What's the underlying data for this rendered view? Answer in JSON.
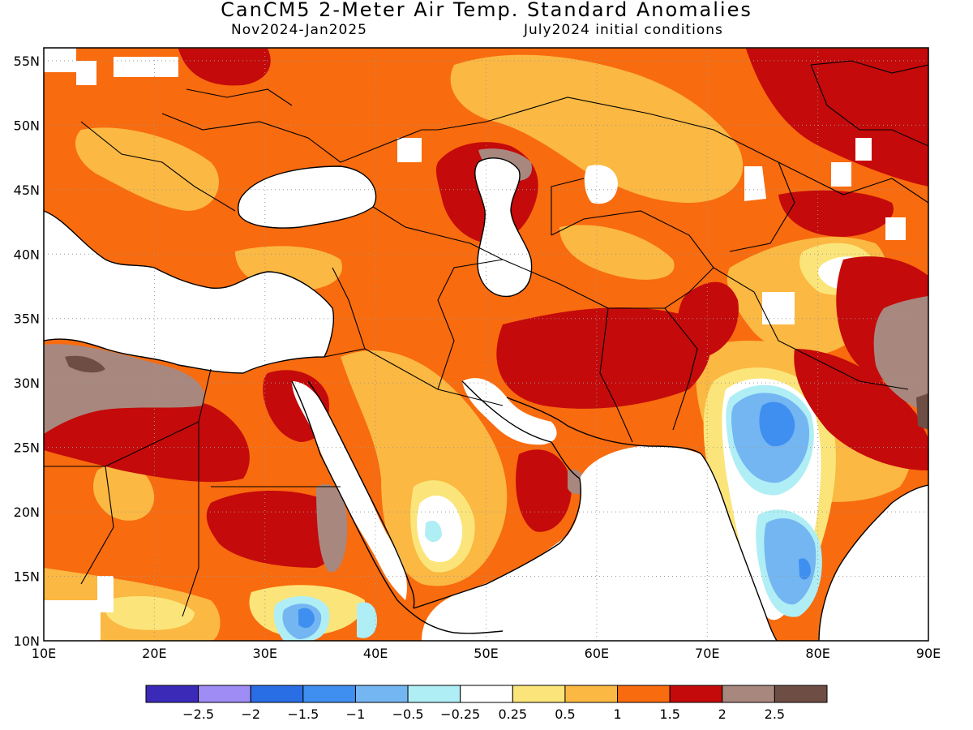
{
  "title": "CanCM5 2-Meter Air Temp. Standard Anomalies",
  "subtitle_period": "Nov2024-Jan2025",
  "subtitle_init": "July2024 initial conditions",
  "map": {
    "lon_range": [
      10,
      90
    ],
    "lat_range": [
      10,
      56
    ],
    "lon_ticks": [
      "10E",
      "20E",
      "30E",
      "40E",
      "50E",
      "60E",
      "70E",
      "80E",
      "90E"
    ],
    "lat_ticks": [
      "10N",
      "15N",
      "20N",
      "25N",
      "30N",
      "35N",
      "40N",
      "45N",
      "50N",
      "55N"
    ],
    "grid": "dotted"
  },
  "legend": {
    "colors": [
      "#3b2ab8",
      "#a08cf5",
      "#2a6ee6",
      "#3f8ff0",
      "#74b6f2",
      "#b0eef5",
      "#ffffff",
      "#fbe57a",
      "#fbb842",
      "#f86b0e",
      "#c40a0a",
      "#a8877e",
      "#6e4e44"
    ],
    "labels": [
      "-2.5",
      "-2",
      "-1.5",
      "-1",
      "-0.5",
      "-0.25",
      "0.25",
      "0.5",
      "1",
      "1.5",
      "2",
      "2.5"
    ]
  },
  "colors": {
    "ocean": "#ffffff",
    "coast": "#000000",
    "grid": "#9a9a9a"
  }
}
